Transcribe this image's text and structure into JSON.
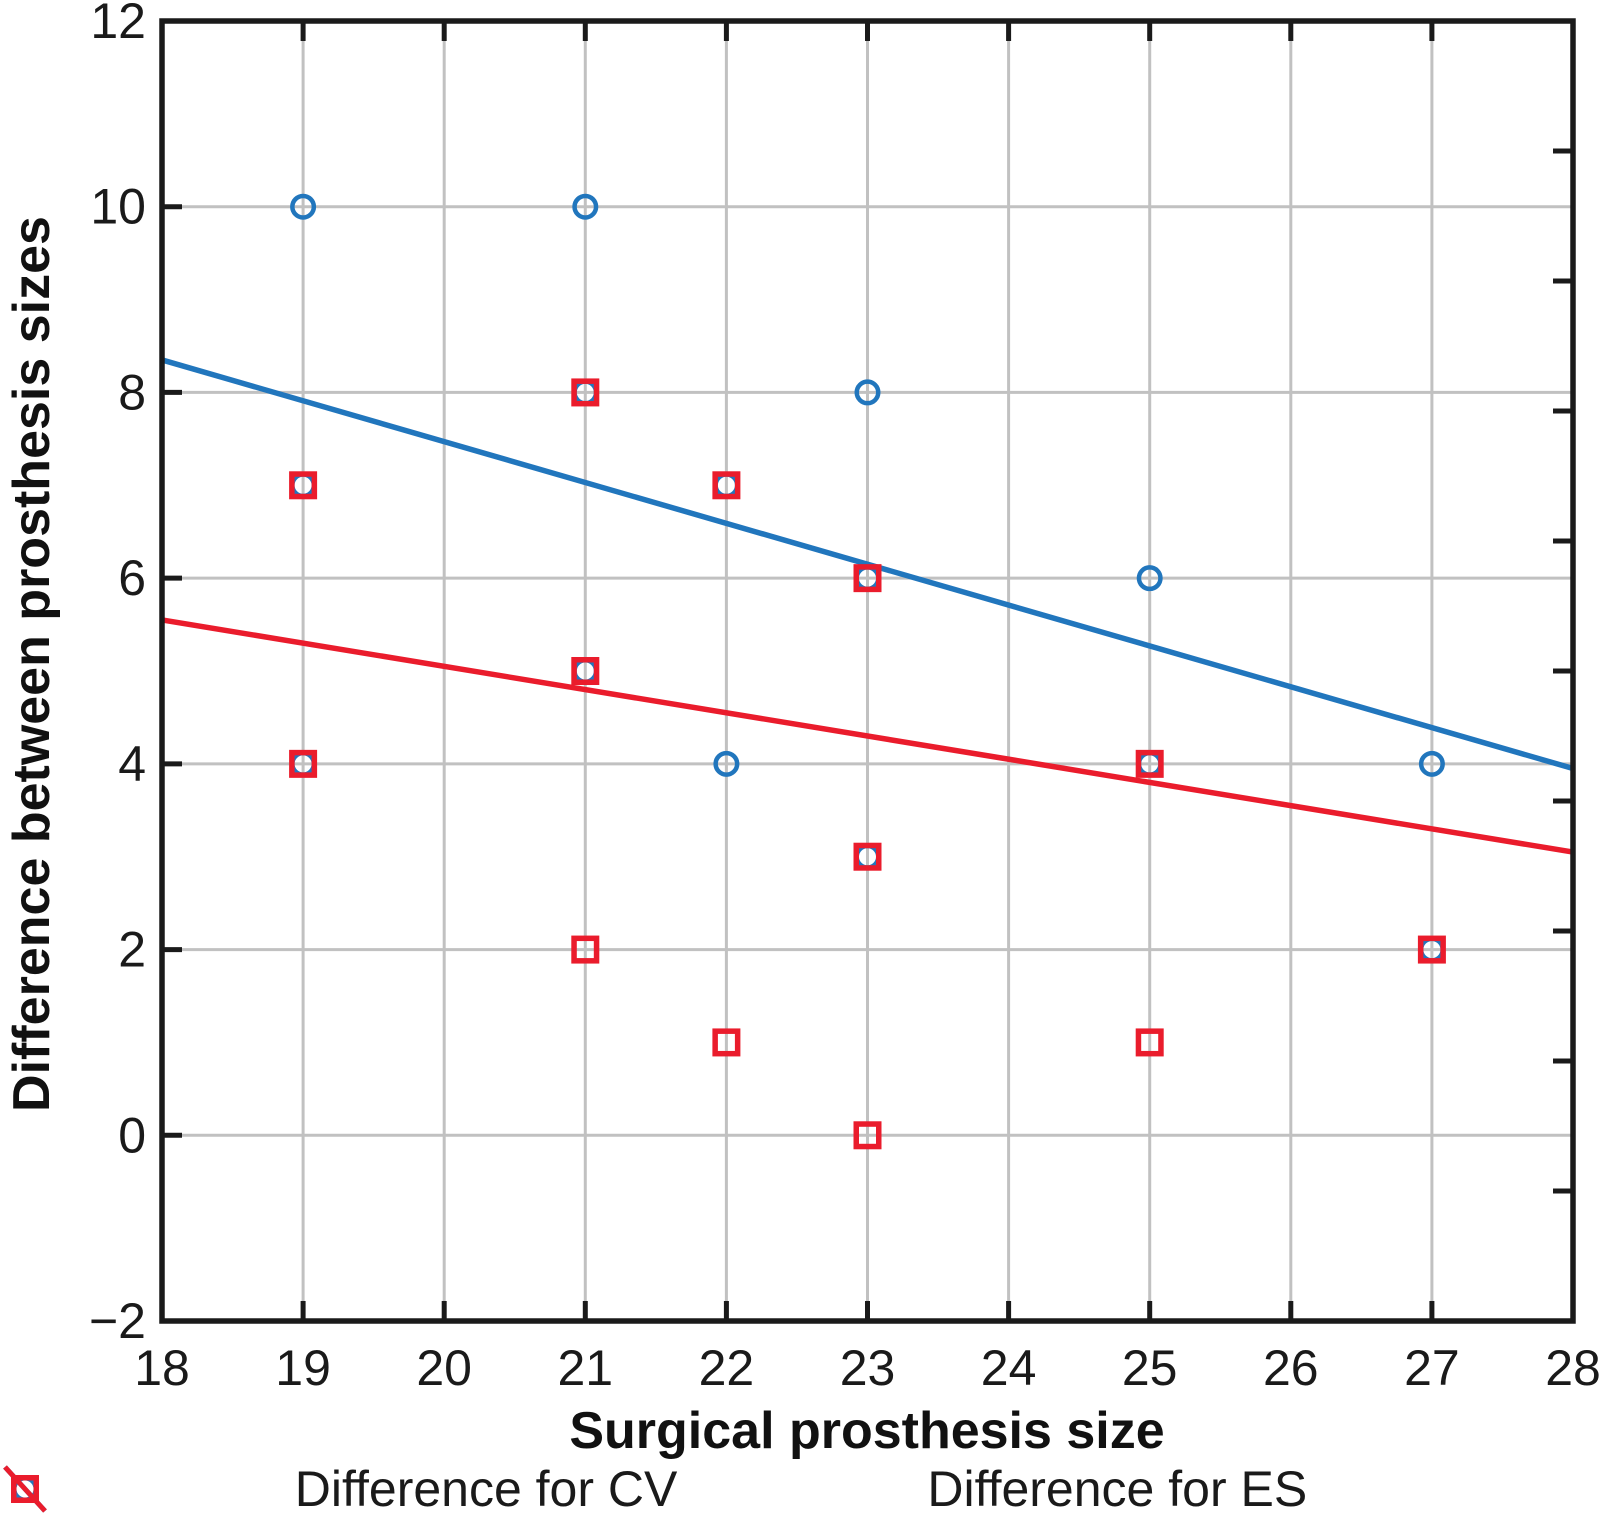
{
  "chart_data": {
    "type": "scatter",
    "title": "",
    "xlabel": "Surgical prosthesis size",
    "ylabel": "Difference between prosthesis sizes",
    "xlim": [
      18,
      28
    ],
    "ylim": [
      -2,
      12
    ],
    "xticks": [
      18,
      19,
      20,
      21,
      22,
      23,
      24,
      25,
      26,
      27,
      28
    ],
    "yticks": [
      -2,
      0,
      2,
      4,
      6,
      8,
      10,
      12
    ],
    "grid": {
      "show": true,
      "color": "#c1c1c1",
      "x_lines": [
        19,
        20,
        21,
        22,
        23,
        24,
        25,
        26,
        27
      ],
      "y_lines": [
        0,
        2,
        4,
        6,
        8,
        10
      ]
    },
    "frame_color": "#1a1a1a",
    "right_axis_tick_divisions": 10,
    "legend_position": "bottom-center",
    "series": [
      {
        "name": "Difference for CV",
        "marker": "circle",
        "color": "#2176bd",
        "points": [
          [
            19,
            10
          ],
          [
            21,
            10
          ],
          [
            21,
            8
          ],
          [
            23,
            8
          ],
          [
            19,
            7
          ],
          [
            22,
            7
          ],
          [
            23,
            6
          ],
          [
            25,
            6
          ],
          [
            21,
            5
          ],
          [
            19,
            4
          ],
          [
            22,
            4
          ],
          [
            25,
            4
          ],
          [
            27,
            4
          ],
          [
            23,
            3
          ],
          [
            27,
            2
          ]
        ],
        "trendline": {
          "x": [
            18,
            28
          ],
          "y": [
            8.35,
            3.95
          ]
        }
      },
      {
        "name": "Difference for ES",
        "marker": "square",
        "color": "#ea1c2c",
        "points": [
          [
            19,
            7
          ],
          [
            21,
            8
          ],
          [
            22,
            7
          ],
          [
            23,
            6
          ],
          [
            21,
            5
          ],
          [
            19,
            4
          ],
          [
            25,
            4
          ],
          [
            23,
            3
          ],
          [
            21,
            2
          ],
          [
            27,
            2
          ],
          [
            22,
            1
          ],
          [
            25,
            1
          ],
          [
            23,
            0
          ]
        ],
        "trendline": {
          "x": [
            18,
            28
          ],
          "y": [
            5.55,
            3.05
          ]
        }
      }
    ]
  }
}
